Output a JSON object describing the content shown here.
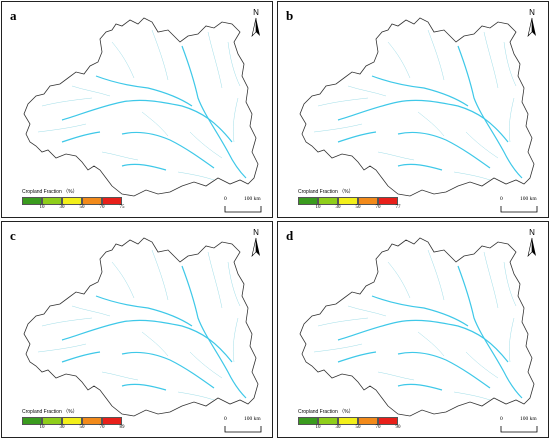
{
  "panels": [
    {
      "id": "a",
      "letter": "a",
      "max_tick": "75"
    },
    {
      "id": "b",
      "letter": "b",
      "max_tick": "77"
    },
    {
      "id": "c",
      "letter": "c",
      "max_tick": "89"
    },
    {
      "id": "d",
      "letter": "d",
      "max_tick": "90"
    }
  ],
  "legend": {
    "title": "Cropland Fraction （%）",
    "ticks": [
      "10",
      "30",
      "50",
      "70"
    ],
    "colors": [
      "#3a9b1e",
      "#8fce1b",
      "#f2ef1a",
      "#f28a1a",
      "#e8201a"
    ]
  },
  "scale": {
    "zero": "0",
    "distance": "100 km"
  },
  "north_label": "N",
  "colors": {
    "border": "#333333",
    "river": "#3ec8e8",
    "stream": "#9fdde8"
  }
}
